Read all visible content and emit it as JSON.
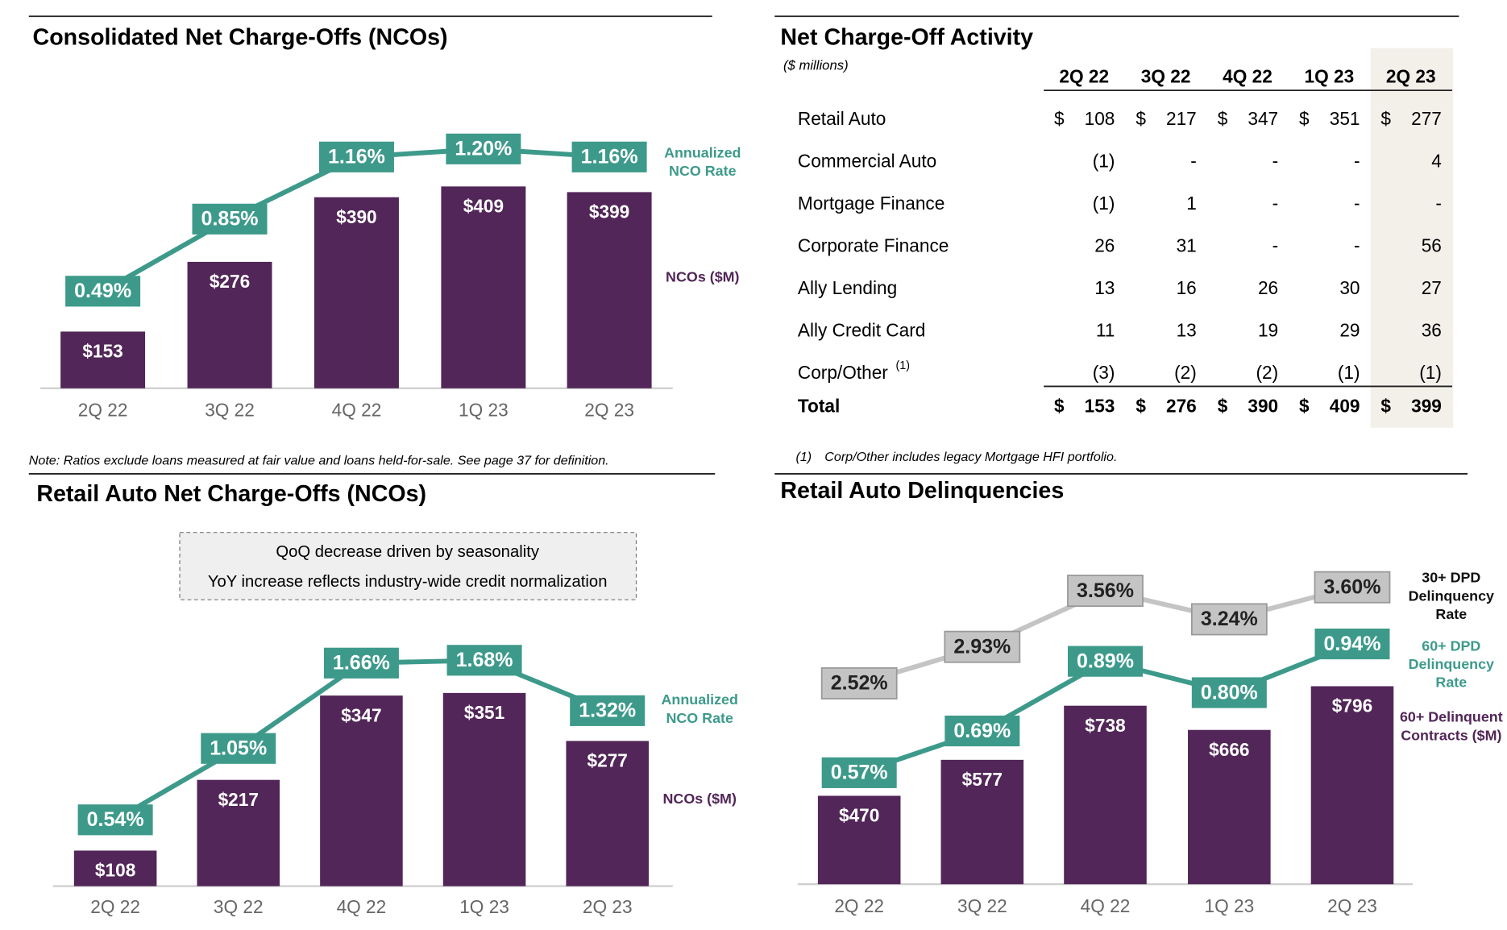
{
  "chart_data": [
    {
      "type": "combo",
      "title": "Consolidated Net Charge-Offs (NCOs)",
      "categories": [
        "2Q 22",
        "3Q 22",
        "4Q 22",
        "1Q 23",
        "2Q 23"
      ],
      "series": [
        {
          "name": "Annualized NCO Rate",
          "type": "line",
          "color": "#3d9a8b",
          "label_color": "#ffffff",
          "values": [
            0.49,
            0.85,
            1.16,
            1.2,
            1.16
          ],
          "value_labels": [
            "0.49%",
            "0.85%",
            "1.16%",
            "1.20%",
            "1.16%"
          ]
        },
        {
          "name": "NCOs ($M)",
          "type": "bar",
          "color": "#522658",
          "label_color": "#ffffff",
          "values": [
            153,
            276,
            390,
            409,
            399
          ],
          "value_labels": [
            "$153",
            "$276",
            "$390",
            "$409",
            "$399"
          ]
        }
      ],
      "note": "Note: Ratios exclude loans measured at fair value and loans held-for-sale. See page 37 for definition."
    },
    {
      "type": "combo",
      "title": "Retail Auto Net Charge-Offs (NCOs)",
      "categories": [
        "2Q 22",
        "3Q 22",
        "4Q 22",
        "1Q 23",
        "2Q 23"
      ],
      "series": [
        {
          "name": "Annualized NCO Rate",
          "type": "line",
          "color": "#3d9a8b",
          "label_color": "#ffffff",
          "values": [
            0.54,
            1.05,
            1.66,
            1.68,
            1.32
          ],
          "value_labels": [
            "0.54%",
            "1.05%",
            "1.66%",
            "1.68%",
            "1.32%"
          ]
        },
        {
          "name": "NCOs ($M)",
          "type": "bar",
          "color": "#522658",
          "label_color": "#ffffff",
          "values": [
            108,
            217,
            347,
            351,
            277
          ],
          "value_labels": [
            "$108",
            "$217",
            "$347",
            "$351",
            "$277"
          ]
        }
      ],
      "callout": [
        "QoQ decrease driven by seasonality",
        "YoY increase reflects industry-wide credit normalization"
      ]
    },
    {
      "type": "combo",
      "title": "Retail Auto Delinquencies",
      "categories": [
        "2Q 22",
        "3Q 22",
        "4Q 22",
        "1Q 23",
        "2Q 23"
      ],
      "series": [
        {
          "name": "30+ DPD Delinquency Rate",
          "type": "line",
          "color": "#c4c4c4",
          "label_color": "#222222",
          "legend_color": "#111111",
          "values": [
            2.52,
            2.93,
            3.56,
            3.24,
            3.6
          ],
          "value_labels": [
            "2.52%",
            "2.93%",
            "3.56%",
            "3.24%",
            "3.60%"
          ]
        },
        {
          "name": "60+ DPD Delinquency Rate",
          "type": "line",
          "color": "#3d9a8b",
          "label_color": "#ffffff",
          "values": [
            0.57,
            0.69,
            0.89,
            0.8,
            0.94
          ],
          "value_labels": [
            "0.57%",
            "0.69%",
            "0.89%",
            "0.80%",
            "0.94%"
          ]
        },
        {
          "name": "60+ Delinquent Contracts ($M)",
          "type": "bar",
          "color": "#522658",
          "label_color": "#ffffff",
          "values": [
            470,
            577,
            738,
            666,
            796
          ],
          "value_labels": [
            "$470",
            "$577",
            "$738",
            "$666",
            "$796"
          ]
        }
      ]
    }
  ],
  "table": {
    "title": "Net Charge-Off Activity",
    "unit": "($ millions)",
    "columns": [
      "2Q 22",
      "3Q 22",
      "4Q 22",
      "1Q 23",
      "2Q 23"
    ],
    "currency": "$",
    "rows": [
      {
        "label": "Retail Auto",
        "values": [
          "108",
          "217",
          "347",
          "351",
          "277"
        ]
      },
      {
        "label": "Commercial Auto",
        "values": [
          "(1)",
          "-",
          "-",
          "-",
          "4"
        ]
      },
      {
        "label": "Mortgage Finance",
        "values": [
          "(1)",
          "1",
          "-",
          "-",
          "-"
        ]
      },
      {
        "label": "Corporate Finance",
        "values": [
          "26",
          "31",
          "-",
          "-",
          "56"
        ]
      },
      {
        "label": "Ally Lending",
        "values": [
          "13",
          "16",
          "26",
          "30",
          "27"
        ]
      },
      {
        "label": "Ally Credit Card",
        "values": [
          "11",
          "13",
          "19",
          "29",
          "36"
        ]
      },
      {
        "label": "Corp/Other",
        "footnote_ref": "(1)",
        "values": [
          "(3)",
          "(2)",
          "(2)",
          "(1)",
          "(1)"
        ]
      }
    ],
    "total": {
      "label": "Total",
      "values": [
        "153",
        "276",
        "390",
        "409",
        "399"
      ]
    },
    "footnote": {
      "marker": "(1)",
      "text": "Corp/Other includes legacy Mortgage HFI portfolio."
    }
  }
}
